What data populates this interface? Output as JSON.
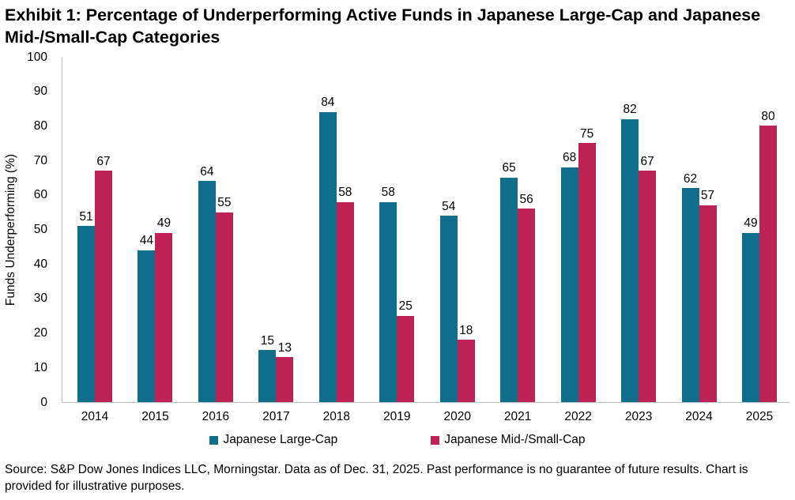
{
  "page": {
    "title": "Exhibit 1: Percentage of Underperforming Active Funds in Japanese Large-Cap and Japanese Mid-/Small-Cap Categories"
  },
  "chart_data": {
    "type": "bar",
    "title": "Exhibit 1: Percentage of Underperforming Active Funds in Japanese Large-Cap and Japanese Mid-/Small-Cap Categories",
    "xlabel": "",
    "ylabel": "Funds Underperforming (%)",
    "ylim": [
      0,
      100
    ],
    "ytick_step": 10,
    "grid": false,
    "legend_position": "bottom",
    "data_labels": true,
    "categories": [
      "2014",
      "2015",
      "2016",
      "2017",
      "2018",
      "2019",
      "2020",
      "2021",
      "2022",
      "2023",
      "2024",
      "2025"
    ],
    "series": [
      {
        "name": "Japanese Large-Cap",
        "color": "#0e6e8c",
        "values": [
          51,
          44,
          64,
          15,
          84,
          58,
          54,
          65,
          68,
          82,
          62,
          49
        ]
      },
      {
        "name": "Japanese Mid-/Small-Cap",
        "color": "#be2153",
        "values": [
          67,
          49,
          55,
          13,
          58,
          25,
          18,
          56,
          75,
          67,
          57,
          80
        ]
      }
    ]
  },
  "source_note": "Source: S&P Dow Jones Indices LLC, Morningstar. Data as of Dec. 31, 2025. Past performance is no guarantee of future results. Chart is provided for illustrative purposes.",
  "colors": {
    "large_cap": "#0e6e8c",
    "mid_small_cap": "#be2153",
    "axis_line": "#bfbfbf",
    "text": "#000000"
  }
}
